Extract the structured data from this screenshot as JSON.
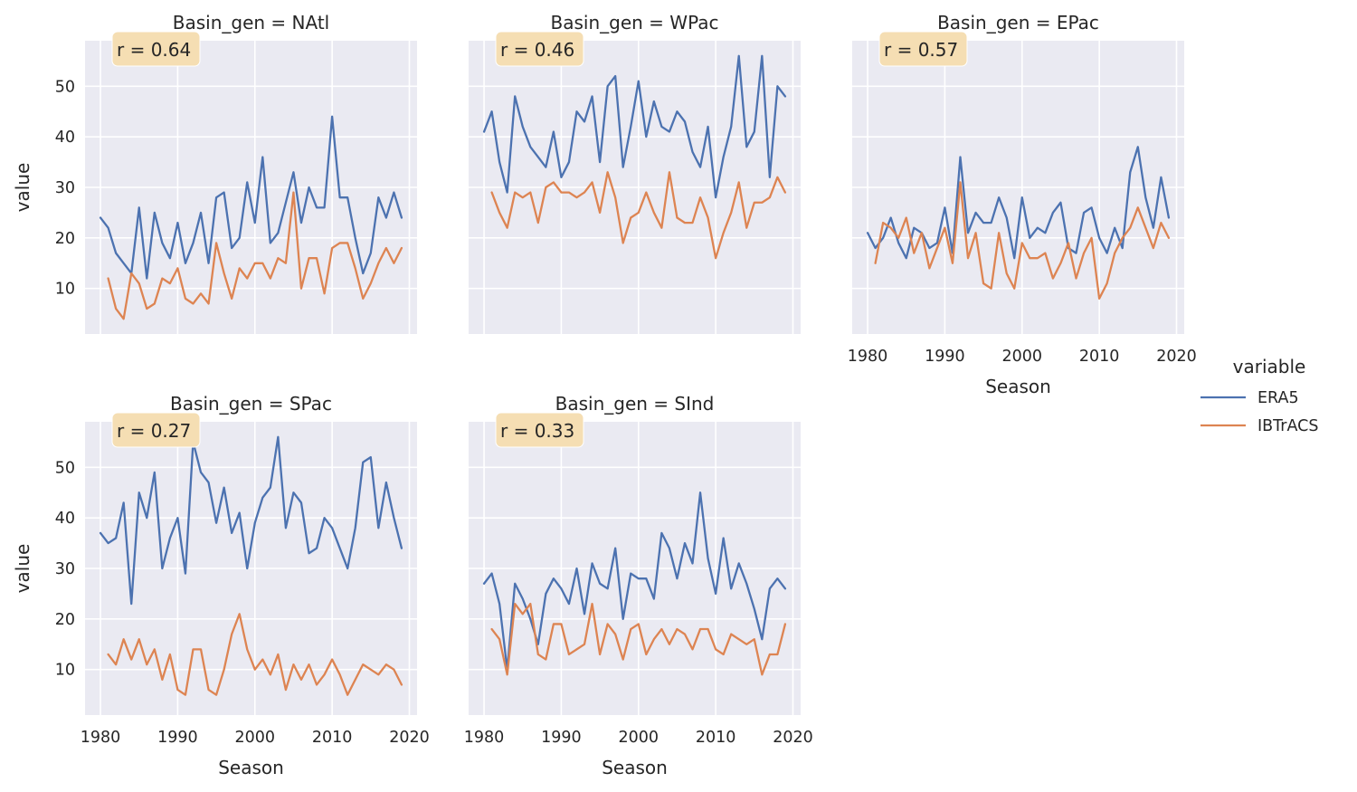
{
  "chart_data": [
    {
      "type": "line",
      "title": "Basin_gen = NAtl",
      "xlabel": "",
      "ylabel": "value",
      "annotation": "r = 0.64",
      "xlim": [
        1978,
        2021
      ],
      "ylim": [
        1,
        59
      ],
      "xticks": [
        1980,
        1990,
        2000,
        2010,
        2020
      ],
      "yticks": [
        10,
        20,
        30,
        40,
        50
      ],
      "show_xticklabels": false,
      "show_yticklabels": true,
      "grid": true,
      "series": [
        {
          "name": "ERA5",
          "x": [
            1980,
            1981,
            1982,
            1983,
            1984,
            1985,
            1986,
            1987,
            1988,
            1989,
            1990,
            1991,
            1992,
            1993,
            1994,
            1995,
            1996,
            1997,
            1998,
            1999,
            2000,
            2001,
            2002,
            2003,
            2004,
            2005,
            2006,
            2007,
            2008,
            2009,
            2010,
            2011,
            2012,
            2013,
            2014,
            2015,
            2016,
            2017,
            2018,
            2019
          ],
          "values": [
            24,
            22,
            17,
            15,
            13,
            26,
            12,
            25,
            19,
            16,
            23,
            15,
            19,
            25,
            15,
            28,
            29,
            18,
            20,
            31,
            23,
            36,
            19,
            21,
            27,
            33,
            23,
            30,
            26,
            26,
            44,
            28,
            28,
            20,
            13,
            17,
            28,
            24,
            29,
            24
          ]
        },
        {
          "name": "IBTrACS",
          "x": [
            1981,
            1982,
            1983,
            1984,
            1985,
            1986,
            1987,
            1988,
            1989,
            1990,
            1991,
            1992,
            1993,
            1994,
            1995,
            1996,
            1997,
            1998,
            1999,
            2000,
            2001,
            2002,
            2003,
            2004,
            2005,
            2006,
            2007,
            2008,
            2009,
            2010,
            2011,
            2012,
            2013,
            2014,
            2015,
            2016,
            2017,
            2018,
            2019
          ],
          "values": [
            12,
            6,
            4,
            13,
            11,
            6,
            7,
            12,
            11,
            14,
            8,
            7,
            9,
            7,
            19,
            13,
            8,
            14,
            12,
            15,
            15,
            12,
            16,
            15,
            29,
            10,
            16,
            16,
            9,
            18,
            19,
            19,
            14,
            8,
            11,
            15,
            18,
            15,
            18
          ]
        }
      ]
    },
    {
      "type": "line",
      "title": "Basin_gen = WPac",
      "xlabel": "",
      "ylabel": "",
      "annotation": "r = 0.46",
      "xlim": [
        1978,
        2021
      ],
      "ylim": [
        1,
        59
      ],
      "xticks": [
        1980,
        1990,
        2000,
        2010,
        2020
      ],
      "yticks": [
        10,
        20,
        30,
        40,
        50
      ],
      "show_xticklabels": false,
      "show_yticklabels": false,
      "grid": true,
      "series": [
        {
          "name": "ERA5",
          "x": [
            1980,
            1981,
            1982,
            1983,
            1984,
            1985,
            1986,
            1987,
            1988,
            1989,
            1990,
            1991,
            1992,
            1993,
            1994,
            1995,
            1996,
            1997,
            1998,
            1999,
            2000,
            2001,
            2002,
            2003,
            2004,
            2005,
            2006,
            2007,
            2008,
            2009,
            2010,
            2011,
            2012,
            2013,
            2014,
            2015,
            2016,
            2017,
            2018,
            2019
          ],
          "values": [
            41,
            45,
            35,
            29,
            48,
            42,
            38,
            36,
            34,
            41,
            32,
            35,
            45,
            43,
            48,
            35,
            50,
            52,
            34,
            42,
            51,
            40,
            47,
            42,
            41,
            45,
            43,
            37,
            34,
            42,
            28,
            36,
            42,
            56,
            38,
            41,
            56,
            32,
            50,
            48
          ]
        },
        {
          "name": "IBTrACS",
          "x": [
            1981,
            1982,
            1983,
            1984,
            1985,
            1986,
            1987,
            1988,
            1989,
            1990,
            1991,
            1992,
            1993,
            1994,
            1995,
            1996,
            1997,
            1998,
            1999,
            2000,
            2001,
            2002,
            2003,
            2004,
            2005,
            2006,
            2007,
            2008,
            2009,
            2010,
            2011,
            2012,
            2013,
            2014,
            2015,
            2016,
            2017,
            2018,
            2019
          ],
          "values": [
            29,
            25,
            22,
            29,
            28,
            29,
            23,
            30,
            31,
            29,
            29,
            28,
            29,
            31,
            25,
            33,
            28,
            19,
            24,
            25,
            29,
            25,
            22,
            33,
            24,
            23,
            23,
            28,
            24,
            16,
            21,
            25,
            31,
            22,
            27,
            27,
            28,
            32,
            29
          ]
        }
      ]
    },
    {
      "type": "line",
      "title": "Basin_gen = EPac",
      "xlabel": "Season",
      "ylabel": "",
      "annotation": "r = 0.57",
      "xlim": [
        1978,
        2021
      ],
      "ylim": [
        1,
        59
      ],
      "xticks": [
        1980,
        1990,
        2000,
        2010,
        2020
      ],
      "yticks": [
        10,
        20,
        30,
        40,
        50
      ],
      "show_xticklabels": true,
      "show_yticklabels": false,
      "grid": true,
      "series": [
        {
          "name": "ERA5",
          "x": [
            1980,
            1981,
            1982,
            1983,
            1984,
            1985,
            1986,
            1987,
            1988,
            1989,
            1990,
            1991,
            1992,
            1993,
            1994,
            1995,
            1996,
            1997,
            1998,
            1999,
            2000,
            2001,
            2002,
            2003,
            2004,
            2005,
            2006,
            2007,
            2008,
            2009,
            2010,
            2011,
            2012,
            2013,
            2014,
            2015,
            2016,
            2017,
            2018,
            2019
          ],
          "values": [
            21,
            18,
            20,
            24,
            19,
            16,
            22,
            21,
            18,
            19,
            26,
            17,
            36,
            21,
            25,
            23,
            23,
            28,
            24,
            16,
            28,
            20,
            22,
            21,
            25,
            27,
            18,
            17,
            25,
            26,
            20,
            17,
            22,
            18,
            33,
            38,
            28,
            22,
            32,
            24
          ]
        },
        {
          "name": "IBTrACS",
          "x": [
            1981,
            1982,
            1983,
            1984,
            1985,
            1986,
            1987,
            1988,
            1989,
            1990,
            1991,
            1992,
            1993,
            1994,
            1995,
            1996,
            1997,
            1998,
            1999,
            2000,
            2001,
            2002,
            2003,
            2004,
            2005,
            2006,
            2007,
            2008,
            2009,
            2010,
            2011,
            2012,
            2013,
            2014,
            2015,
            2016,
            2017,
            2018,
            2019
          ],
          "values": [
            15,
            23,
            22,
            20,
            24,
            17,
            21,
            14,
            18,
            22,
            15,
            31,
            16,
            21,
            11,
            10,
            21,
            13,
            10,
            19,
            16,
            16,
            17,
            12,
            15,
            19,
            12,
            17,
            20,
            8,
            11,
            17,
            20,
            22,
            26,
            22,
            18,
            23,
            20
          ]
        }
      ]
    },
    {
      "type": "line",
      "title": "Basin_gen = SPac",
      "xlabel": "Season",
      "ylabel": "value",
      "annotation": "r = 0.27",
      "xlim": [
        1978,
        2021
      ],
      "ylim": [
        1,
        59
      ],
      "xticks": [
        1980,
        1990,
        2000,
        2010,
        2020
      ],
      "yticks": [
        10,
        20,
        30,
        40,
        50
      ],
      "show_xticklabels": true,
      "show_yticklabels": true,
      "grid": true,
      "series": [
        {
          "name": "ERA5",
          "x": [
            1980,
            1981,
            1982,
            1983,
            1984,
            1985,
            1986,
            1987,
            1988,
            1989,
            1990,
            1991,
            1992,
            1993,
            1994,
            1995,
            1996,
            1997,
            1998,
            1999,
            2000,
            2001,
            2002,
            2003,
            2004,
            2005,
            2006,
            2007,
            2008,
            2009,
            2010,
            2011,
            2012,
            2013,
            2014,
            2015,
            2016,
            2017,
            2018,
            2019
          ],
          "values": [
            37,
            35,
            36,
            43,
            23,
            45,
            40,
            49,
            30,
            36,
            40,
            29,
            55,
            49,
            47,
            39,
            46,
            37,
            41,
            30,
            39,
            44,
            46,
            56,
            38,
            45,
            43,
            33,
            34,
            40,
            38,
            34,
            30,
            38,
            51,
            52,
            38,
            47,
            40,
            34
          ]
        },
        {
          "name": "IBTrACS",
          "x": [
            1981,
            1982,
            1983,
            1984,
            1985,
            1986,
            1987,
            1988,
            1989,
            1990,
            1991,
            1992,
            1993,
            1994,
            1995,
            1996,
            1997,
            1998,
            1999,
            2000,
            2001,
            2002,
            2003,
            2004,
            2005,
            2006,
            2007,
            2008,
            2009,
            2010,
            2011,
            2012,
            2013,
            2014,
            2015,
            2016,
            2017,
            2018,
            2019
          ],
          "values": [
            13,
            11,
            16,
            12,
            16,
            11,
            14,
            8,
            13,
            6,
            5,
            14,
            14,
            6,
            5,
            10,
            17,
            21,
            14,
            10,
            12,
            9,
            13,
            6,
            11,
            8,
            11,
            7,
            9,
            12,
            9,
            5,
            8,
            11,
            10,
            9,
            11,
            10,
            7
          ]
        }
      ]
    },
    {
      "type": "line",
      "title": "Basin_gen = SInd",
      "xlabel": "Season",
      "ylabel": "",
      "annotation": "r = 0.33",
      "xlim": [
        1978,
        2021
      ],
      "ylim": [
        1,
        59
      ],
      "xticks": [
        1980,
        1990,
        2000,
        2010,
        2020
      ],
      "yticks": [
        10,
        20,
        30,
        40,
        50
      ],
      "show_xticklabels": true,
      "show_yticklabels": false,
      "grid": true,
      "series": [
        {
          "name": "ERA5",
          "x": [
            1980,
            1981,
            1982,
            1983,
            1984,
            1985,
            1986,
            1987,
            1988,
            1989,
            1990,
            1991,
            1992,
            1993,
            1994,
            1995,
            1996,
            1997,
            1998,
            1999,
            2000,
            2001,
            2002,
            2003,
            2004,
            2005,
            2006,
            2007,
            2008,
            2009,
            2010,
            2011,
            2012,
            2013,
            2014,
            2015,
            2016,
            2017,
            2018,
            2019
          ],
          "values": [
            27,
            29,
            23,
            10,
            27,
            24,
            20,
            15,
            25,
            28,
            26,
            23,
            30,
            21,
            31,
            27,
            26,
            34,
            20,
            29,
            28,
            28,
            24,
            37,
            34,
            28,
            35,
            31,
            45,
            32,
            25,
            36,
            26,
            31,
            27,
            22,
            16,
            26,
            28,
            26
          ]
        },
        {
          "name": "IBTrACS",
          "x": [
            1981,
            1982,
            1983,
            1984,
            1985,
            1986,
            1987,
            1988,
            1989,
            1990,
            1991,
            1992,
            1993,
            1994,
            1995,
            1996,
            1997,
            1998,
            1999,
            2000,
            2001,
            2002,
            2003,
            2004,
            2005,
            2006,
            2007,
            2008,
            2009,
            2010,
            2011,
            2012,
            2013,
            2014,
            2015,
            2016,
            2017,
            2018,
            2019
          ],
          "values": [
            18,
            16,
            9,
            23,
            21,
            23,
            13,
            12,
            19,
            19,
            13,
            14,
            15,
            23,
            13,
            19,
            17,
            12,
            18,
            19,
            13,
            16,
            18,
            15,
            18,
            17,
            14,
            18,
            18,
            14,
            13,
            17,
            16,
            15,
            16,
            9,
            13,
            13,
            19
          ]
        }
      ]
    }
  ],
  "legend": {
    "title": "variable",
    "entries": [
      {
        "label": "ERA5",
        "color": "#4c72b0"
      },
      {
        "label": "IBTrACS",
        "color": "#dd8452"
      }
    ]
  },
  "colors": {
    "panel_bg": "#eaeaf2",
    "grid": "#ffffff",
    "annotation_bg": "#f5deb3",
    "text": "#262626"
  }
}
